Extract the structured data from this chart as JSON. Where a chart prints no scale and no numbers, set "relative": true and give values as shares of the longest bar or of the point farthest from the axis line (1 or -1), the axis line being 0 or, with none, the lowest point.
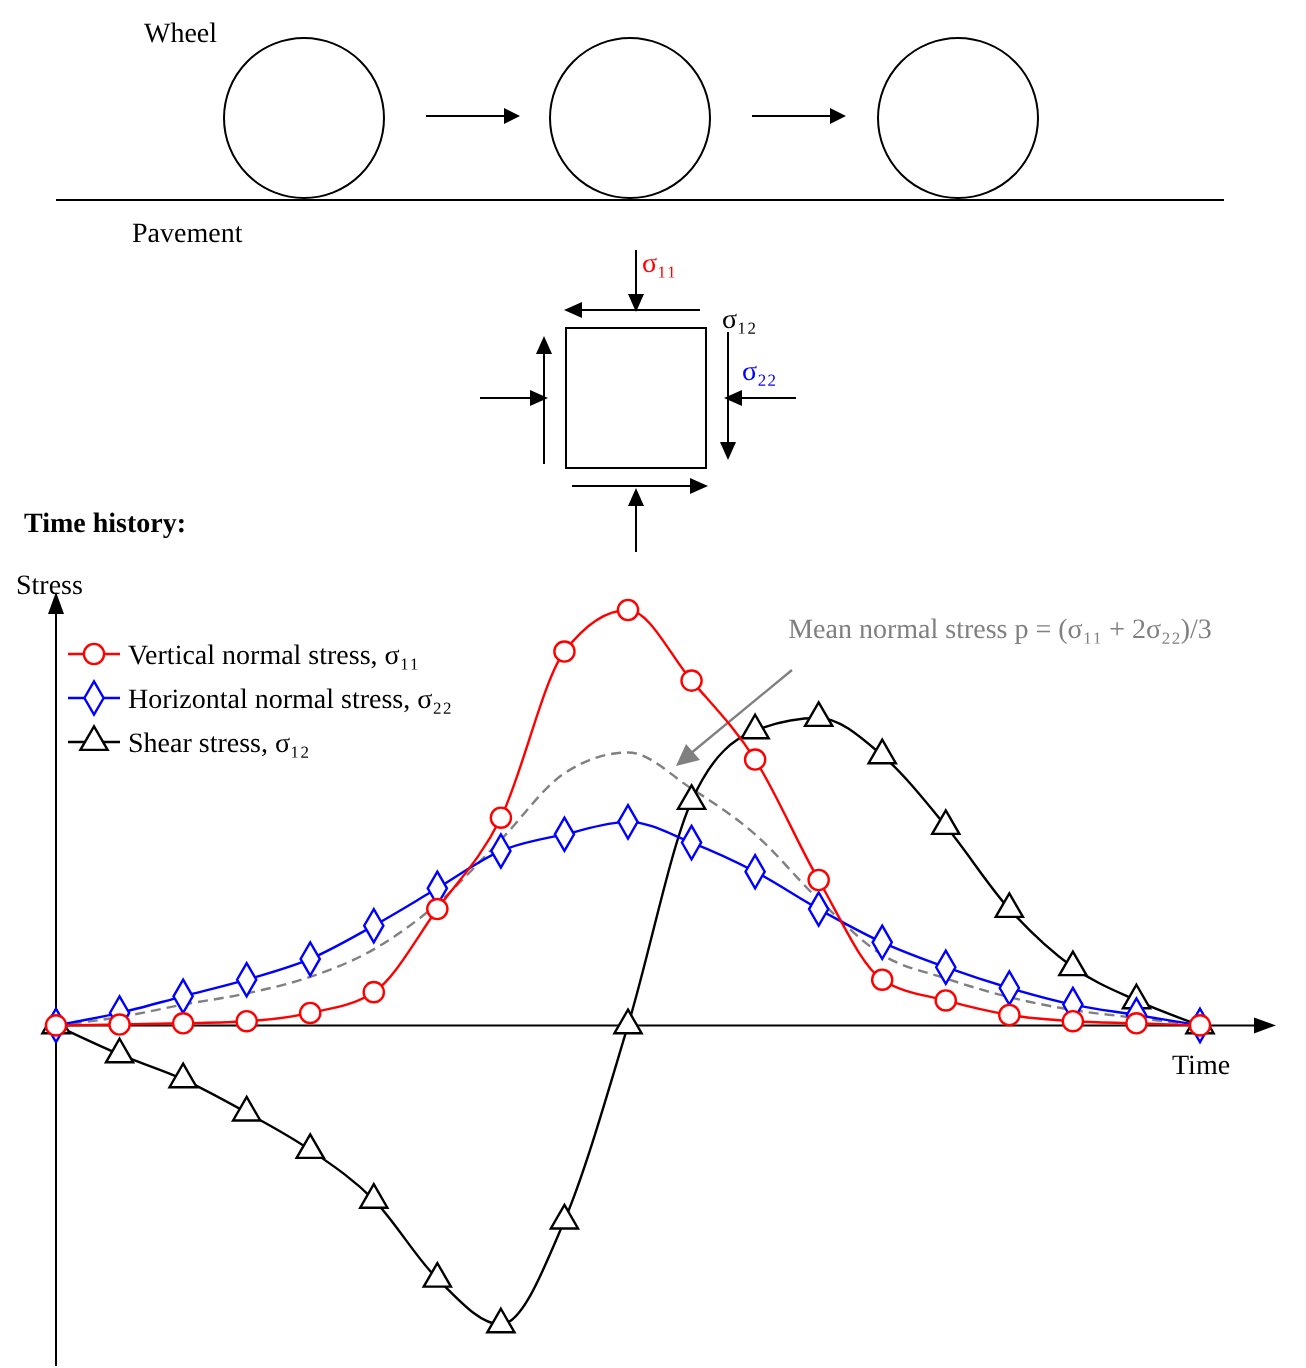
{
  "chart_data": {
    "type": "line",
    "relative": true,
    "xlabel": "Time",
    "ylabel": "Stress",
    "legend": "top left",
    "annotations": [
      "Wheel",
      "Pavement",
      "σ₁₁",
      "σ₁₂",
      "σ₂₂",
      "Time history:",
      "Mean normal stress p = (σ₁₁ + 2σ₂₂)/3"
    ],
    "categories": [
      null,
      null,
      null,
      null,
      null,
      null,
      null,
      null,
      null,
      null,
      null,
      null,
      null,
      null,
      null,
      null,
      null,
      null,
      null
    ],
    "series": [
      {
        "name": "Vertical normal stress, σ₁₁",
        "color": "#ff0000",
        "marker": "circle",
        "values": [
          0,
          0.002,
          0.005,
          0.01,
          0.03,
          0.08,
          0.28,
          0.5,
          0.9,
          1,
          0.83,
          0.64,
          0.35,
          0.11,
          0.06,
          0.025,
          0.01,
          0.005,
          0
        ]
      },
      {
        "name": "Horizontal normal stress, σ₂₂",
        "color": "#0000ff",
        "marker": "diamond",
        "values": [
          0,
          0.03,
          0.07,
          0.11,
          0.16,
          0.24,
          0.33,
          0.42,
          0.46,
          0.49,
          0.44,
          0.37,
          0.28,
          0.2,
          0.14,
          0.09,
          0.05,
          0.025,
          0
        ]
      },
      {
        "name": "Shear stress, σ₁₂",
        "color": "#000000",
        "marker": "triangle",
        "values": [
          0,
          -0.07,
          -0.13,
          -0.21,
          -0.3,
          -0.42,
          -0.61,
          -0.72,
          -0.47,
          0,
          0.54,
          0.71,
          0.74,
          0.65,
          0.48,
          0.28,
          0.14,
          0.06,
          0
        ]
      },
      {
        "color": "#808080",
        "marker": "none",
        "line_style": "dashed",
        "values": [
          0,
          0.02,
          0.05,
          0.077,
          0.117,
          0.183,
          0.293,
          0.447,
          0.607,
          0.657,
          0.57,
          0.46,
          0.303,
          0.17,
          0.113,
          0.068,
          0.037,
          0.018,
          0
        ]
      }
    ]
  }
}
